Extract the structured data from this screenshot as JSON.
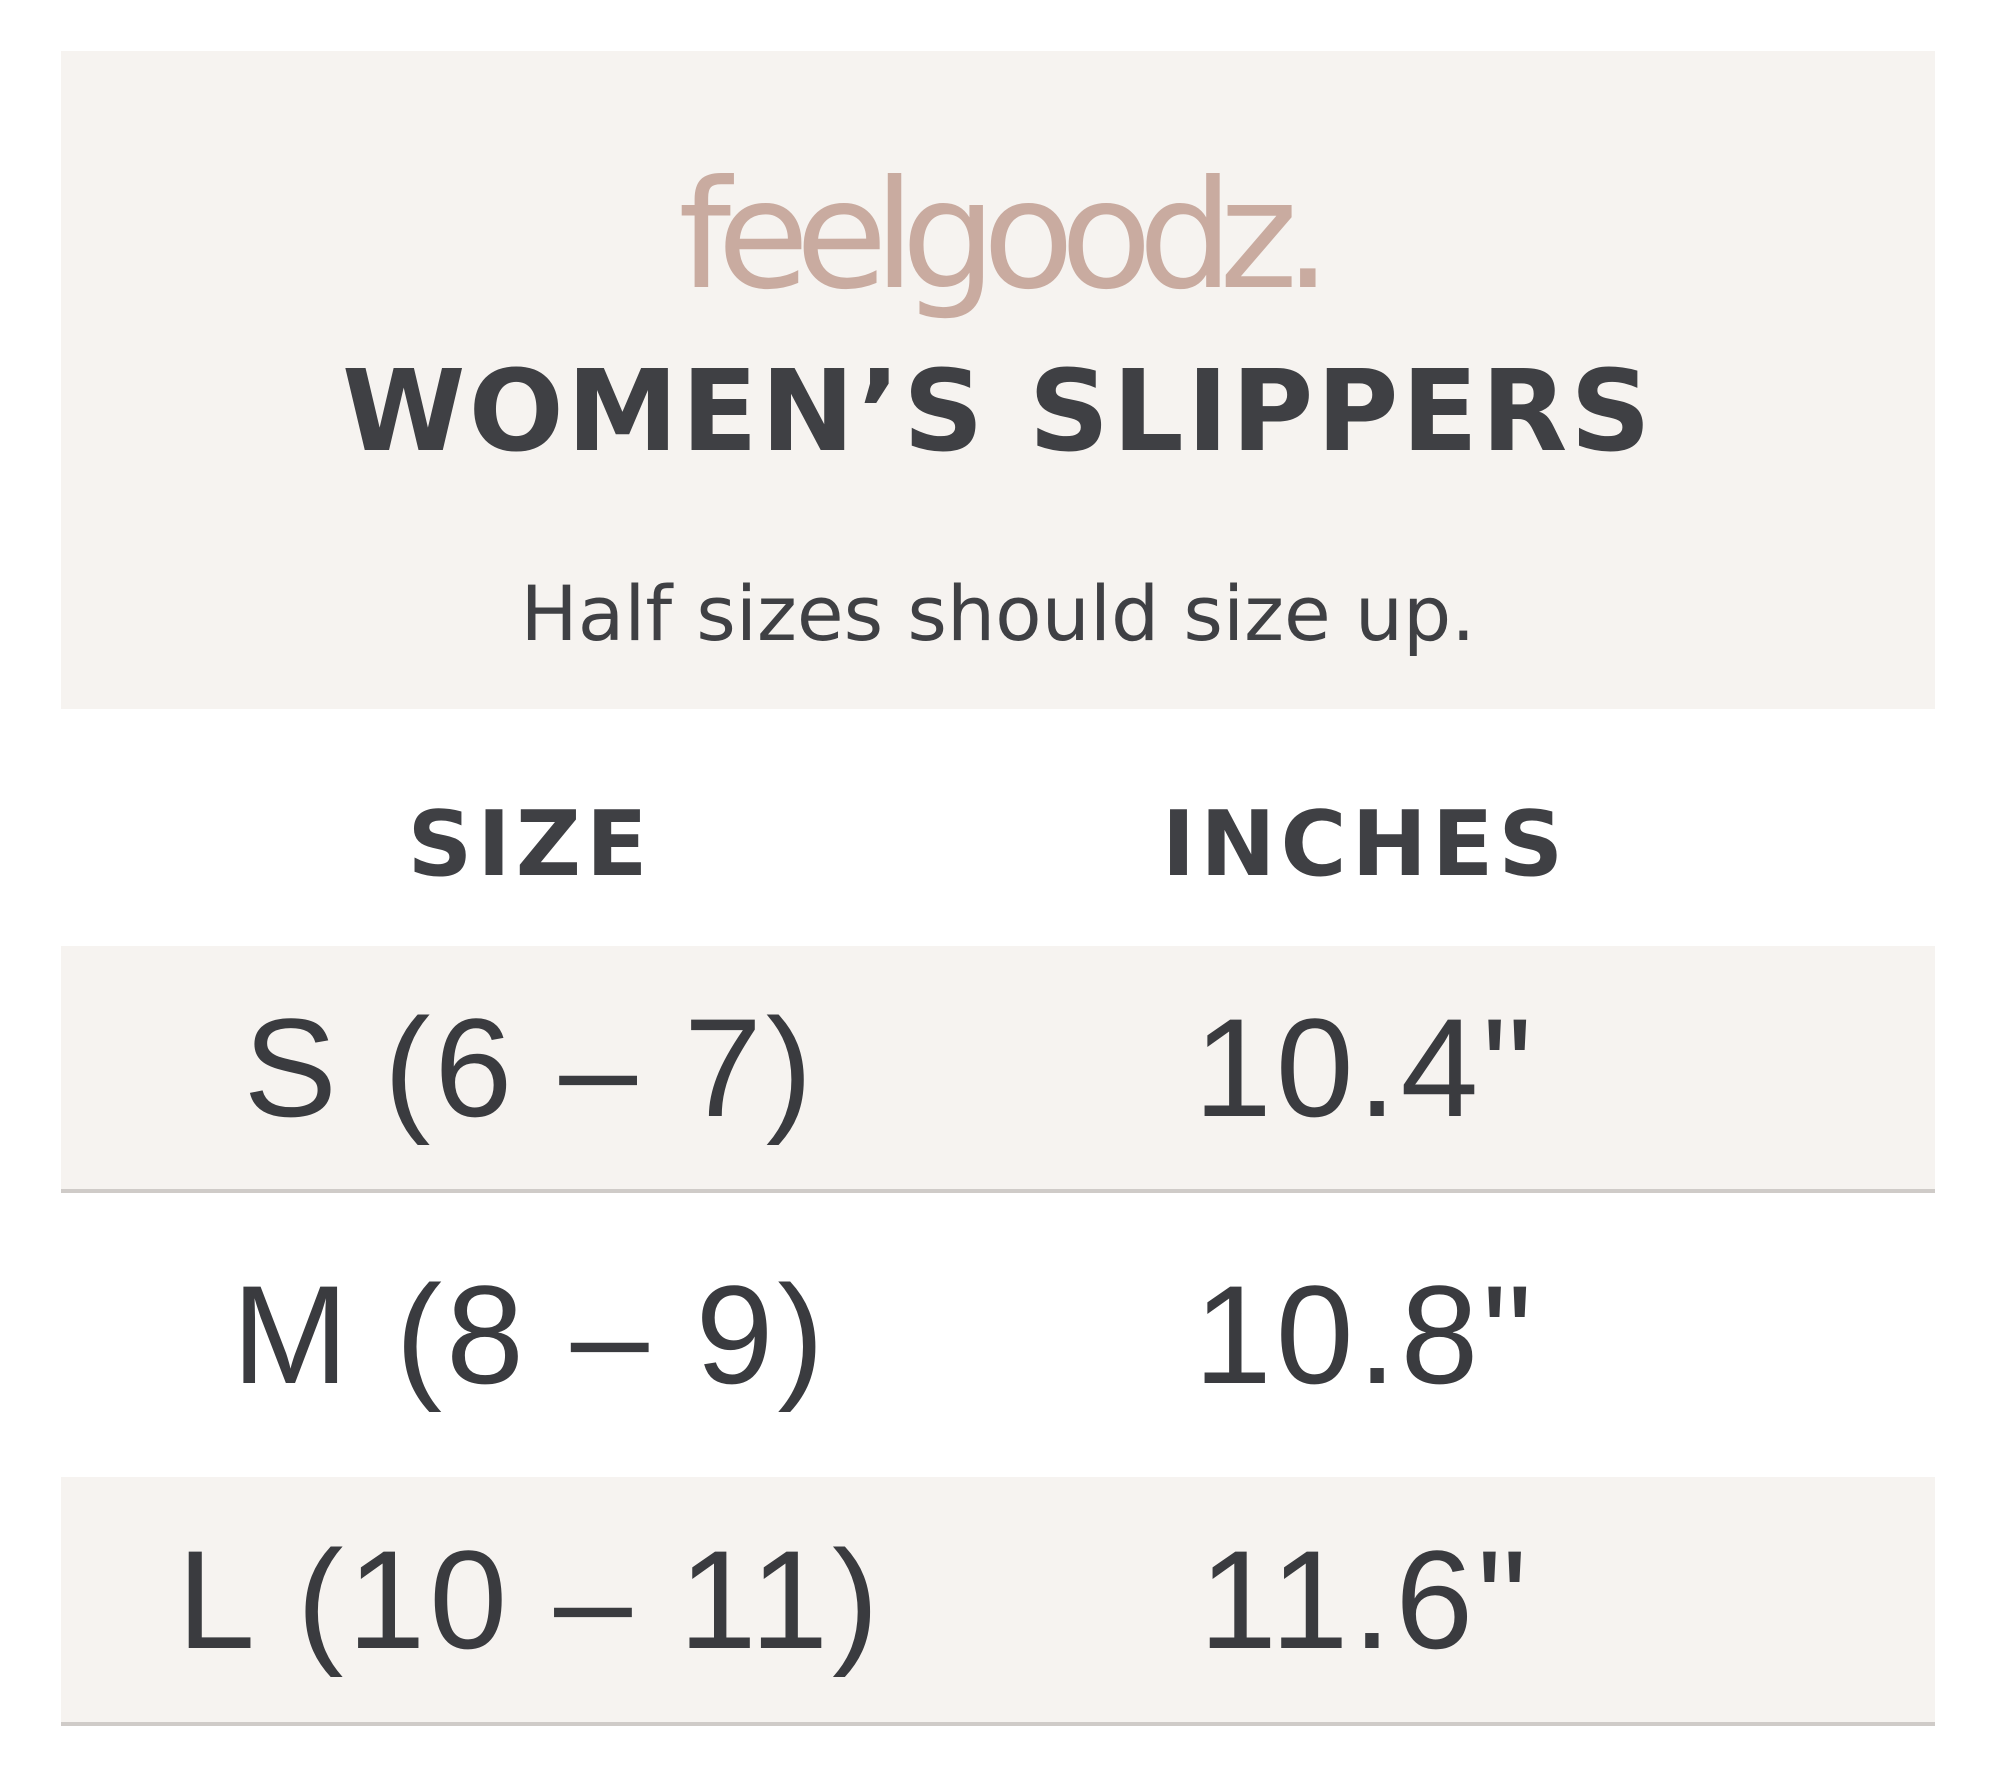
{
  "brand": {
    "logo_text": "feelgoodz.",
    "logo_color": "#c9aba0"
  },
  "title": "WOMEN’S SLIPPERS",
  "subtitle": "Half sizes should size up.",
  "table": {
    "headers": [
      "SIZE",
      "INCHES"
    ],
    "rows": [
      {
        "size": "S (6 – 7)",
        "inches": "10.4\""
      },
      {
        "size": "M (8 – 9)",
        "inches": "10.8\""
      },
      {
        "size": "L (10 – 11)",
        "inches": "11.6\""
      }
    ]
  },
  "colors": {
    "panel": "#f6f3f0",
    "text": "#3f4044",
    "divider": "#cfcbc8"
  }
}
